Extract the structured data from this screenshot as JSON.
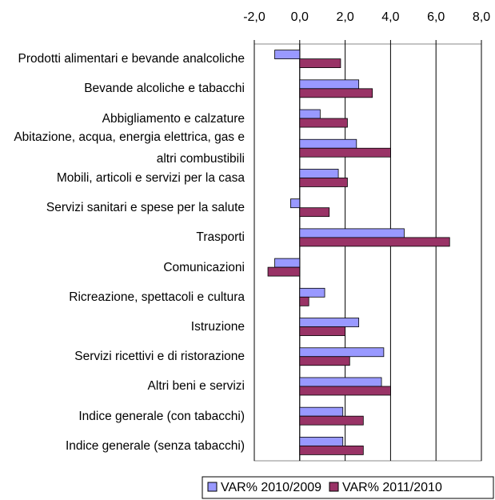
{
  "chart_data": {
    "type": "barh",
    "categories": [
      "Prodotti alimentari e bevande analcoliche",
      "Bevande alcoliche e tabacchi",
      "Abbigliamento e calzature",
      "Abitazione, acqua, energia elettrica, gas e altri combustibili",
      "Mobili, articoli e servizi per la casa",
      "Servizi sanitari e spese per la salute",
      "Trasporti",
      "Comunicazioni",
      "Ricreazione, spettacoli e cultura",
      "Istruzione",
      "Servizi ricettivi e di ristorazione",
      "Altri beni e servizi",
      "Indice generale (con tabacchi)",
      "Indice generale (senza tabacchi)"
    ],
    "series": [
      {
        "name": "VAR% 2010/2009",
        "color": "#9999ff",
        "values": [
          -1.1,
          2.6,
          0.9,
          2.5,
          1.7,
          -0.4,
          4.6,
          -1.1,
          1.1,
          2.6,
          3.7,
          3.6,
          1.9,
          1.9
        ]
      },
      {
        "name": "VAR% 2011/2010",
        "color": "#993366",
        "values": [
          1.8,
          3.2,
          2.1,
          4.0,
          2.1,
          1.3,
          6.6,
          -1.4,
          0.4,
          2.0,
          2.2,
          4.0,
          2.8,
          2.8
        ]
      }
    ],
    "xlim": [
      -2,
      8
    ],
    "xticks": [
      {
        "value": -2,
        "label": "-2,0"
      },
      {
        "value": 0,
        "label": "0,0"
      },
      {
        "value": 2,
        "label": "2,0"
      },
      {
        "value": 4,
        "label": "4,0"
      },
      {
        "value": 6,
        "label": "6,0"
      },
      {
        "value": 8,
        "label": "8,0"
      }
    ],
    "grid": true,
    "legend": "bottom"
  }
}
